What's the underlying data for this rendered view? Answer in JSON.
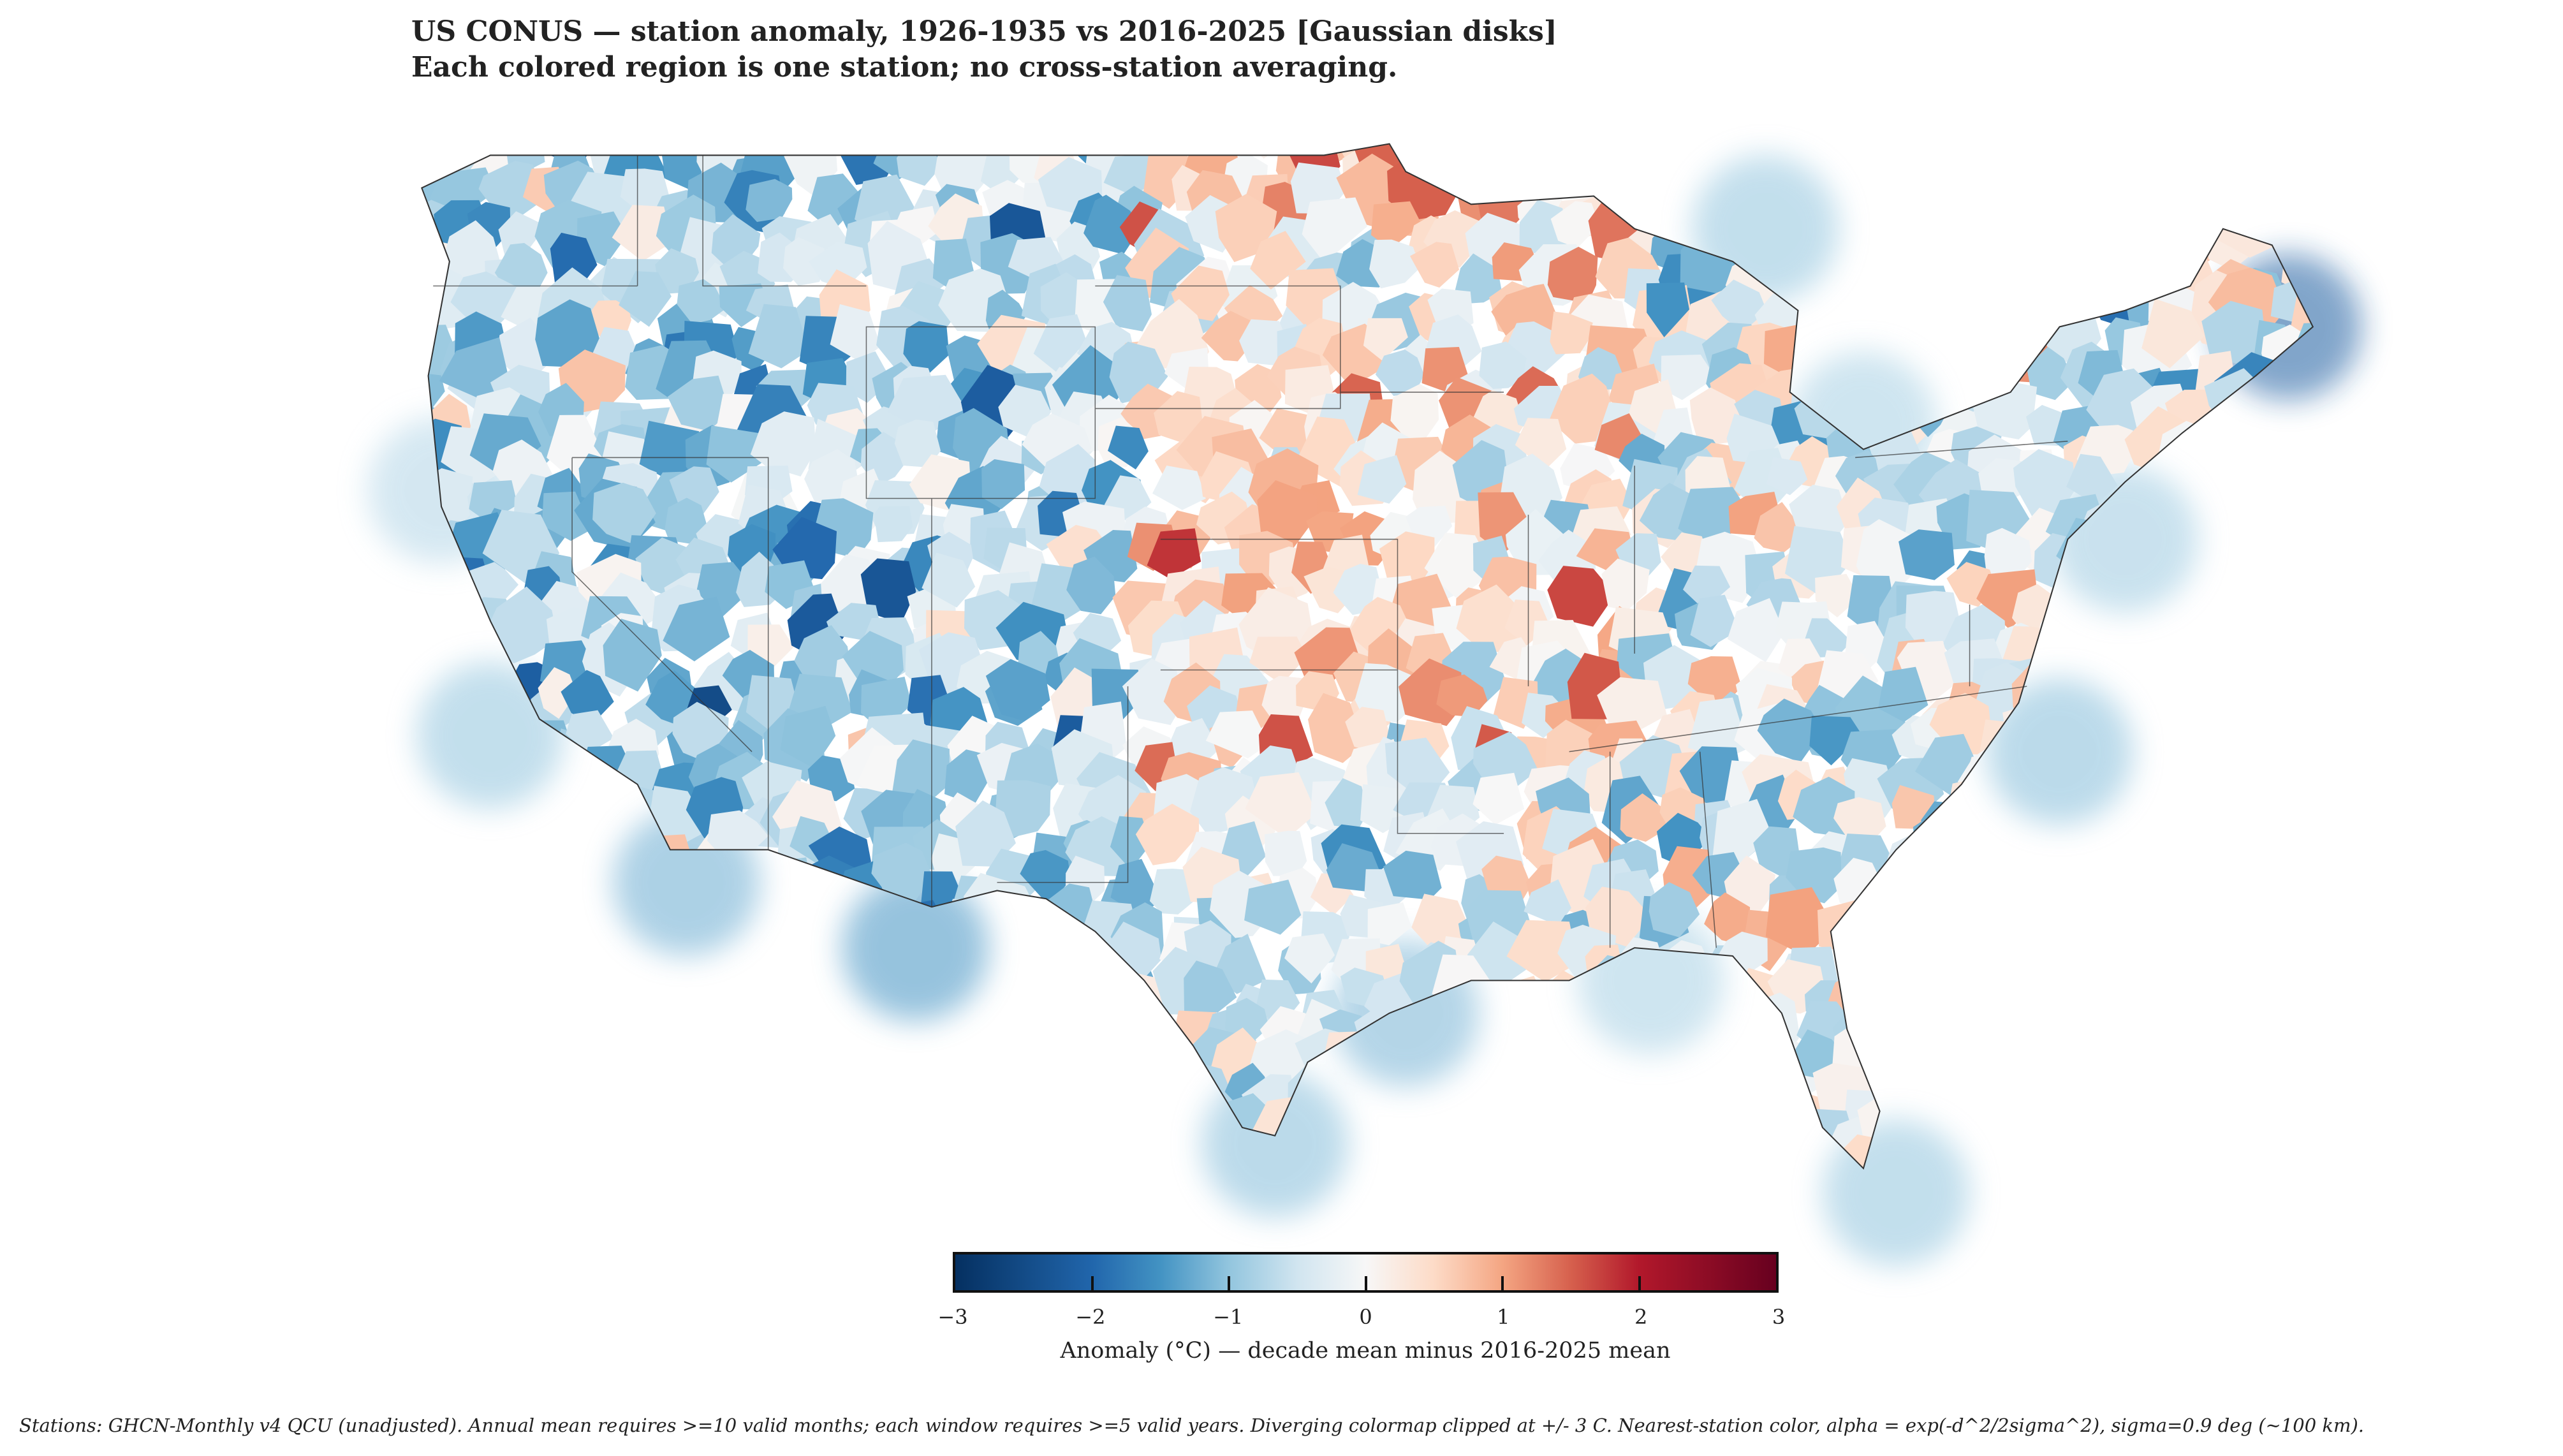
{
  "title": {
    "line1": "US CONUS — station anomaly, 1926-1935 vs 2016-2025  [Gaussian disks]",
    "line2": "Each colored region is one station; no cross-station averaging."
  },
  "colorbar": {
    "ticks": [
      "−3",
      "−2",
      "−1",
      "0",
      "1",
      "2",
      "3"
    ],
    "tick_values": [
      -3,
      -2,
      -1,
      0,
      1,
      2,
      3
    ],
    "range": [
      -3,
      3
    ],
    "label": "Anomaly (°C) — decade mean minus 2016-2025 mean",
    "colormap": [
      "#053061",
      "#2166ac",
      "#4393c3",
      "#92c5de",
      "#d1e5f0",
      "#f7f7f7",
      "#fddbc7",
      "#f4a582",
      "#d6604d",
      "#b2182b",
      "#67001f"
    ]
  },
  "footnote": "Stations: GHCN-Monthly v4 QCU (unadjusted). Annual mean requires >=10 valid months; each window requires >=5 valid years. Diverging colormap clipped at +/- 3 C. Nearest-station color, alpha = exp(-d^2/2sigma^2), sigma=0.9 deg (~100 km)."
}
